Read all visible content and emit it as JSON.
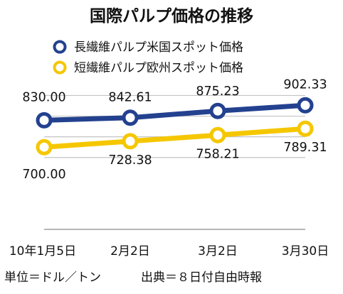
{
  "chart_data": {
    "type": "line",
    "title": "国際パルプ価格の推移",
    "categories": [
      "10年1月5日",
      "2月2日",
      "3月2日",
      "3月30日"
    ],
    "series": [
      {
        "name": "長繊維パルプ米国スポット価格",
        "values": [
          830.0,
          842.61,
          875.23,
          902.33
        ],
        "labels": [
          "830.00",
          "842.61",
          "875.23",
          "902.33"
        ],
        "color": "#23418f"
      },
      {
        "name": "短繊維パルプ欧州スポット価格",
        "values": [
          700.0,
          728.38,
          758.21,
          789.31
        ],
        "labels": [
          "700.00",
          "728.38",
          "758.21",
          "789.31"
        ],
        "color": "#f5c700"
      }
    ],
    "ylim": [
      550,
      950
    ],
    "grid": true,
    "legend_position": "top",
    "unit_note": "単位＝ドル／トン",
    "source_note": "出典＝８日付自由時報"
  }
}
